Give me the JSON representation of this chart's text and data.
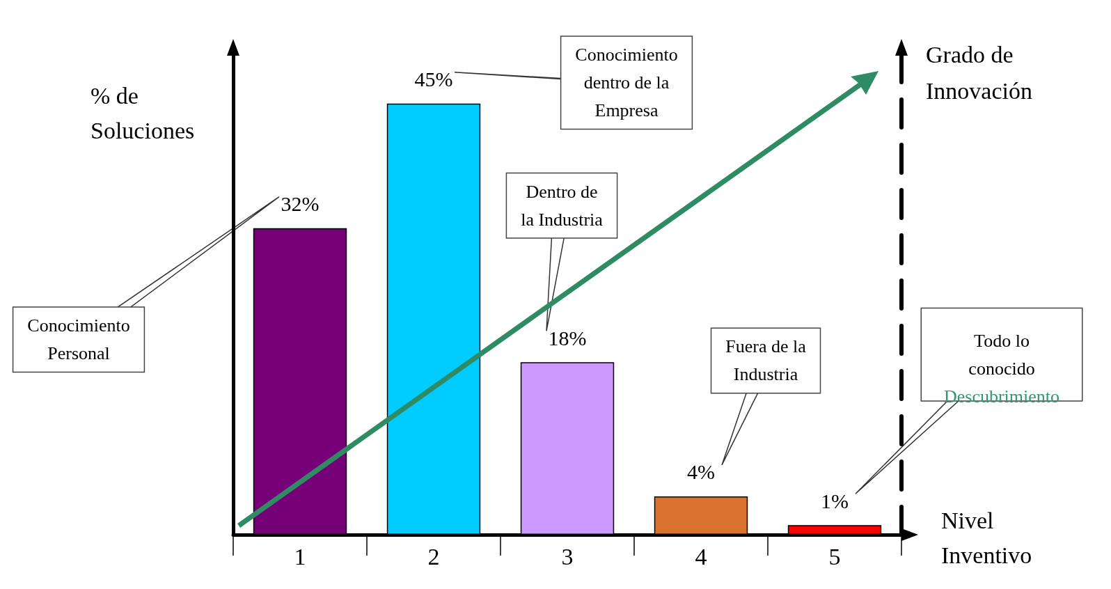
{
  "chart_data": {
    "type": "bar",
    "categories": [
      "1",
      "2",
      "3",
      "4",
      "5"
    ],
    "values": [
      32,
      45,
      18,
      4,
      1
    ],
    "colors": [
      "#760077",
      "#00ccff",
      "#cc99ff",
      "#d9722e",
      "#ff0000"
    ],
    "value_labels": [
      "32%",
      "45%",
      "18%",
      "4%",
      "1%"
    ],
    "ylabel": "% de Soluciones",
    "xlabel": "Nivel Inventivo",
    "y2label": "Grado de Innovación",
    "tick_labels": "x",
    "grid": false,
    "annotations": [
      "Conocimiento\nPersonal",
      "Conocimiento\ndentro de la\nEmpresa",
      "Dentro de\nla Industria",
      "Fuera de la\nIndustria",
      "Todo lo\nconocido",
      "Descubrimiento"
    ]
  }
}
